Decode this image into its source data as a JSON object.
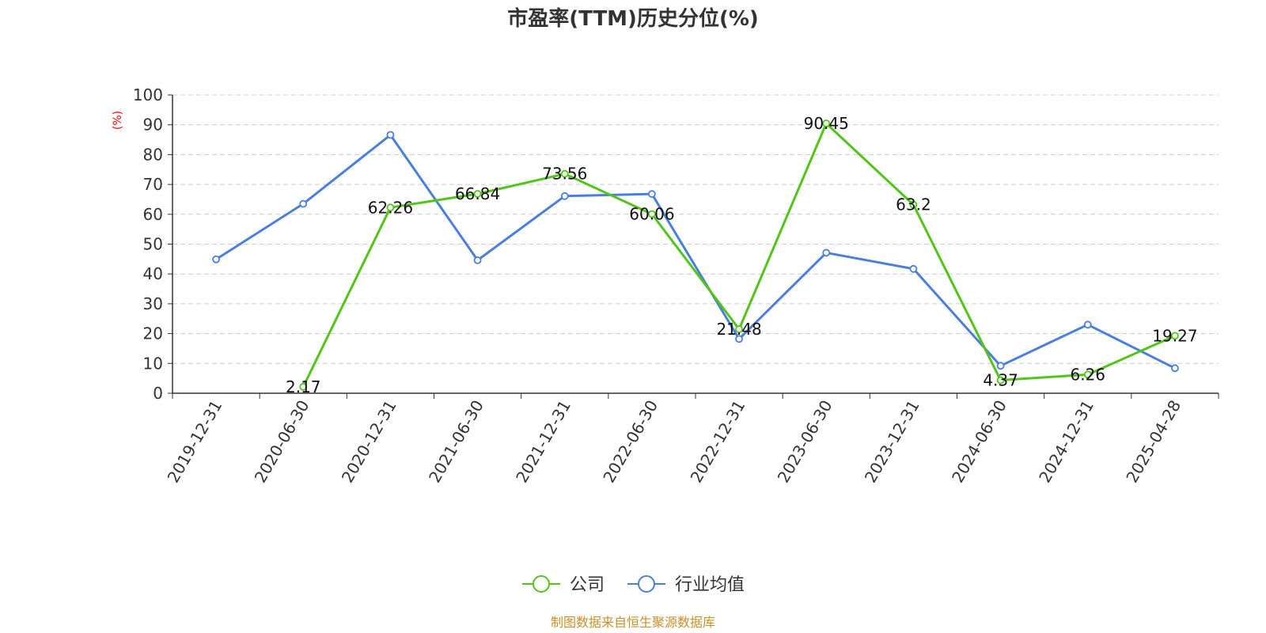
{
  "chart_data": {
    "type": "line",
    "title": "市盈率(TTM)历史分位(%)",
    "ylabel": "(%)",
    "ylim": [
      0,
      100
    ],
    "yticks": [
      "0",
      "10",
      "20",
      "30",
      "40",
      "50",
      "60",
      "70",
      "80",
      "90",
      "100"
    ],
    "grid": true,
    "legend_position": "bottom-center",
    "categories": [
      "2019-12-31",
      "2020-06-30",
      "2020-12-31",
      "2021-06-30",
      "2021-12-31",
      "2022-06-30",
      "2022-12-31",
      "2023-06-30",
      "2023-12-31",
      "2024-06-30",
      "2024-12-31",
      "2025-04-28"
    ],
    "series": [
      {
        "name": "公司",
        "color": "#52c41a",
        "values": [
          null,
          2.17,
          62.26,
          66.84,
          73.56,
          60.06,
          21.48,
          90.45,
          63.2,
          4.37,
          6.26,
          19.27
        ],
        "labels": [
          null,
          "2.17",
          "62.26",
          "66.84",
          "73.56",
          "60.06",
          "21.48",
          "90.45",
          "63.2",
          "4.37",
          "6.26",
          "19.27"
        ]
      },
      {
        "name": "行业均值",
        "color": "#4a7fdc",
        "values": [
          44.9,
          63.5,
          86.6,
          44.6,
          66.1,
          66.8,
          18.2,
          47.1,
          41.7,
          9.2,
          23.0,
          8.4
        ]
      }
    ]
  },
  "unit_color": "#ff0000",
  "source": {
    "text": "制图数据来自恒生聚源数据库",
    "color": "#c8902a"
  }
}
